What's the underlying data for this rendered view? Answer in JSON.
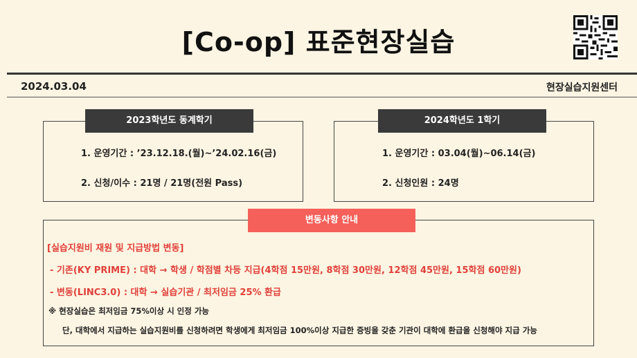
{
  "header": {
    "title": "[Co-op] 표준현장실습",
    "date": "2024.03.04",
    "organization": "현장실습지원센터",
    "qr_icon": "qr-code-icon"
  },
  "left_card": {
    "title": "2023학년도 동계학기",
    "items": [
      "1. 운영기간 : ’23.12.18.(월)~’24.02.16(금)",
      "2. 신청/이수 : 21명 / 21명(전원 Pass)"
    ]
  },
  "right_card": {
    "title": "2024학년도 1학기",
    "items": [
      "1. 운영기간 : 03.04(월)~06.14(금)",
      "2. 신청인원 : 24명"
    ]
  },
  "notice": {
    "title": "변동사항 안내",
    "heading": "[실습지원비 재원 및 지급방법 변동]",
    "lines": [
      "- 기존(KY PRIME) : 대학 → 학생 / 학점별 차등 지급(4학점 15만원, 8학점 30만원, 12학점 45만원, 15학점 60만원)",
      "- 변동(LINC3.0) : 대학 → 실습기관 / 최저임금 25% 환급"
    ],
    "note1": "※ 현장실습은 최저임금 75%이상 시 인정 가능",
    "note2": "단, 대학에서 지급하는 실습지원비를 신청하려면 학생에게 최저임금 100%이상 지급한 증빙을 갖춘 기관이 대학에 환급을 신청해야 지급 가능"
  },
  "colors": {
    "background": "#fdf5e3",
    "dark_header": "#3a3a3a",
    "accent_red": "#f5605a",
    "text_red": "#e0403a"
  }
}
